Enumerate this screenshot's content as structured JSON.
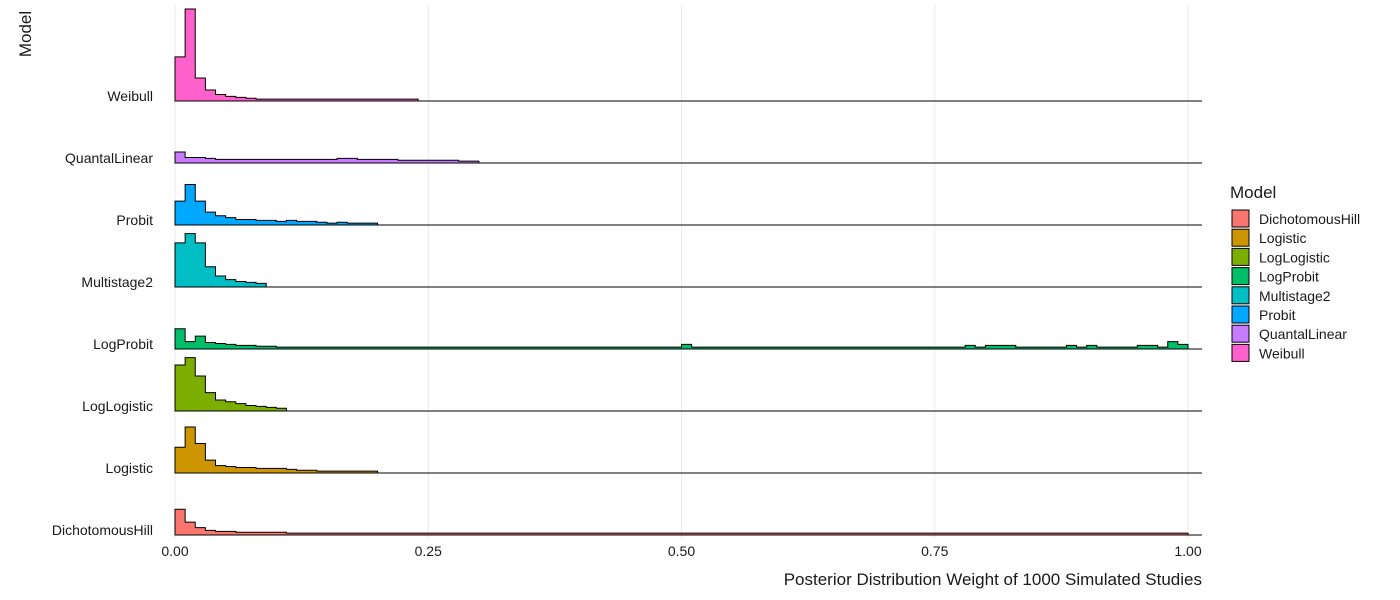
{
  "chart_data": {
    "type": "ridgeline histogram",
    "xlabel": "Posterior Distribution Weight of 1000 Simulated Studies",
    "ylabel": "Model",
    "xlim": [
      0,
      1
    ],
    "x_ticks": [
      "0.00",
      "0.25",
      "0.50",
      "0.75",
      "1.00"
    ],
    "bin_width": 0.01,
    "grid": "vertical major gridlines",
    "legend": {
      "title": "Model",
      "position": "right",
      "entries": [
        {
          "label": "DichotomousHill",
          "color": "#F8766D"
        },
        {
          "label": "Logistic",
          "color": "#CD9600"
        },
        {
          "label": "LogLogistic",
          "color": "#7CAE00"
        },
        {
          "label": "LogProbit",
          "color": "#00BE67"
        },
        {
          "label": "Multistage2",
          "color": "#00BFC4"
        },
        {
          "label": "Probit",
          "color": "#00A9FF"
        },
        {
          "label": "QuantalLinear",
          "color": "#C77CFF"
        },
        {
          "label": "Weibull",
          "color": "#FF61CC"
        }
      ]
    },
    "series": [
      {
        "name": "DichotomousHill",
        "color": "#F8766D",
        "values": [
          0.28,
          0.14,
          0.08,
          0.05,
          0.04,
          0.04,
          0.03,
          0.03,
          0.03,
          0.03,
          0.03,
          0.02,
          0.02,
          0.02,
          0.02,
          0.02,
          0.02,
          0.02,
          0.02,
          0.02,
          0.02,
          0.02,
          0.02,
          0.02,
          0.02,
          0.02,
          0.02,
          0.02,
          0.02,
          0.02,
          0.02,
          0.02,
          0.02,
          0.02,
          0.02,
          0.02,
          0.02,
          0.02,
          0.02,
          0.02,
          0.02,
          0.02,
          0.02,
          0.02,
          0.02,
          0.02,
          0.02,
          0.02,
          0.02,
          0.02,
          0.02,
          0.02,
          0.02,
          0.02,
          0.02,
          0.02,
          0.02,
          0.02,
          0.02,
          0.02,
          0.02,
          0.02,
          0.02,
          0.02,
          0.02,
          0.02,
          0.02,
          0.02,
          0.02,
          0.02,
          0.02,
          0.02,
          0.02,
          0.02,
          0.02,
          0.02,
          0.02,
          0.02,
          0.02,
          0.02,
          0.02,
          0.02,
          0.02,
          0.02,
          0.02,
          0.02,
          0.02,
          0.02,
          0.02,
          0.02,
          0.02,
          0.02,
          0.02,
          0.02,
          0.02,
          0.02,
          0.02,
          0.02,
          0.02,
          0.02
        ]
      },
      {
        "name": "Logistic",
        "color": "#CD9600",
        "values": [
          0.28,
          0.5,
          0.32,
          0.14,
          0.08,
          0.07,
          0.06,
          0.06,
          0.05,
          0.05,
          0.05,
          0.04,
          0.03,
          0.03,
          0.02,
          0.02,
          0.02,
          0.02,
          0.02,
          0.02,
          0,
          0,
          0,
          0,
          0,
          0,
          0,
          0,
          0,
          0,
          0,
          0,
          0,
          0,
          0,
          0,
          0,
          0,
          0,
          0,
          0,
          0,
          0,
          0,
          0,
          0,
          0,
          0,
          0,
          0,
          0,
          0,
          0,
          0,
          0,
          0,
          0,
          0,
          0,
          0,
          0,
          0,
          0,
          0,
          0,
          0,
          0,
          0,
          0,
          0,
          0,
          0,
          0,
          0,
          0,
          0,
          0,
          0,
          0,
          0,
          0,
          0,
          0,
          0,
          0,
          0,
          0,
          0,
          0,
          0,
          0,
          0,
          0,
          0,
          0,
          0,
          0,
          0,
          0,
          0
        ]
      },
      {
        "name": "LogLogistic",
        "color": "#7CAE00",
        "values": [
          0.5,
          0.58,
          0.38,
          0.2,
          0.12,
          0.1,
          0.08,
          0.06,
          0.05,
          0.04,
          0.03,
          0,
          0,
          0,
          0,
          0,
          0,
          0,
          0,
          0,
          0,
          0,
          0,
          0,
          0,
          0,
          0,
          0,
          0,
          0,
          0,
          0,
          0,
          0,
          0,
          0,
          0,
          0,
          0,
          0,
          0,
          0,
          0,
          0,
          0,
          0,
          0,
          0,
          0,
          0,
          0,
          0,
          0,
          0,
          0,
          0,
          0,
          0,
          0,
          0,
          0,
          0,
          0,
          0,
          0,
          0,
          0,
          0,
          0,
          0,
          0,
          0,
          0,
          0,
          0,
          0,
          0,
          0,
          0,
          0,
          0,
          0,
          0,
          0,
          0,
          0,
          0,
          0,
          0,
          0,
          0,
          0,
          0,
          0,
          0,
          0,
          0,
          0,
          0,
          0
        ]
      },
      {
        "name": "LogProbit",
        "color": "#00BE67",
        "values": [
          0.22,
          0.08,
          0.14,
          0.07,
          0.06,
          0.05,
          0.04,
          0.04,
          0.03,
          0.03,
          0.02,
          0.02,
          0.02,
          0.02,
          0.02,
          0.02,
          0.02,
          0.02,
          0.02,
          0.02,
          0.02,
          0.02,
          0.02,
          0.02,
          0.02,
          0.02,
          0.02,
          0.02,
          0.02,
          0.02,
          0.02,
          0.02,
          0.02,
          0.02,
          0.02,
          0.02,
          0.02,
          0.02,
          0.02,
          0.02,
          0.02,
          0.02,
          0.02,
          0.02,
          0.02,
          0.02,
          0.02,
          0.02,
          0.02,
          0.02,
          0.05,
          0.02,
          0.02,
          0.02,
          0.02,
          0.02,
          0.02,
          0.02,
          0.02,
          0.02,
          0.02,
          0.02,
          0.02,
          0.02,
          0.02,
          0.02,
          0.02,
          0.02,
          0.02,
          0.02,
          0.02,
          0.02,
          0.02,
          0.02,
          0.02,
          0.02,
          0.02,
          0.02,
          0.04,
          0.02,
          0.04,
          0.04,
          0.04,
          0.02,
          0.02,
          0.02,
          0.02,
          0.02,
          0.04,
          0.02,
          0.04,
          0.02,
          0.02,
          0.02,
          0.02,
          0.04,
          0.04,
          0.02,
          0.08,
          0.05
        ]
      },
      {
        "name": "Multistage2",
        "color": "#00BFC4",
        "values": [
          0.48,
          0.58,
          0.48,
          0.22,
          0.12,
          0.08,
          0.06,
          0.05,
          0.04,
          0,
          0,
          0,
          0,
          0,
          0,
          0,
          0,
          0,
          0,
          0,
          0,
          0,
          0,
          0,
          0,
          0,
          0,
          0,
          0,
          0,
          0,
          0,
          0,
          0,
          0,
          0,
          0,
          0,
          0,
          0,
          0,
          0,
          0,
          0,
          0,
          0,
          0,
          0,
          0,
          0,
          0,
          0,
          0,
          0,
          0,
          0,
          0,
          0,
          0,
          0,
          0,
          0,
          0,
          0,
          0,
          0,
          0,
          0,
          0,
          0,
          0,
          0,
          0,
          0,
          0,
          0,
          0,
          0,
          0,
          0,
          0,
          0,
          0,
          0,
          0,
          0,
          0,
          0,
          0,
          0,
          0,
          0,
          0,
          0,
          0,
          0,
          0,
          0,
          0,
          0
        ]
      },
      {
        "name": "Probit",
        "color": "#00A9FF",
        "values": [
          0.26,
          0.44,
          0.26,
          0.14,
          0.1,
          0.08,
          0.06,
          0.06,
          0.05,
          0.05,
          0.04,
          0.05,
          0.04,
          0.04,
          0.03,
          0.02,
          0.03,
          0.02,
          0.02,
          0.02,
          0,
          0,
          0,
          0,
          0,
          0,
          0,
          0,
          0,
          0,
          0,
          0,
          0,
          0,
          0,
          0,
          0,
          0,
          0,
          0,
          0,
          0,
          0,
          0,
          0,
          0,
          0,
          0,
          0,
          0,
          0,
          0,
          0,
          0,
          0,
          0,
          0,
          0,
          0,
          0,
          0,
          0,
          0,
          0,
          0,
          0,
          0,
          0,
          0,
          0,
          0,
          0,
          0,
          0,
          0,
          0,
          0,
          0,
          0,
          0,
          0,
          0,
          0,
          0,
          0,
          0,
          0,
          0,
          0,
          0,
          0,
          0,
          0,
          0,
          0,
          0,
          0,
          0,
          0,
          0
        ]
      },
      {
        "name": "QuantalLinear",
        "color": "#C77CFF",
        "values": [
          0.12,
          0.06,
          0.06,
          0.05,
          0.04,
          0.04,
          0.04,
          0.04,
          0.04,
          0.04,
          0.04,
          0.04,
          0.04,
          0.04,
          0.04,
          0.04,
          0.05,
          0.05,
          0.04,
          0.04,
          0.04,
          0.04,
          0.03,
          0.03,
          0.03,
          0.03,
          0.03,
          0.03,
          0.02,
          0.02,
          0,
          0,
          0,
          0,
          0,
          0,
          0,
          0,
          0,
          0,
          0,
          0,
          0,
          0,
          0,
          0,
          0,
          0,
          0,
          0,
          0,
          0,
          0,
          0,
          0,
          0,
          0,
          0,
          0,
          0,
          0,
          0,
          0,
          0,
          0,
          0,
          0,
          0,
          0,
          0,
          0,
          0,
          0,
          0,
          0,
          0,
          0,
          0,
          0,
          0,
          0,
          0,
          0,
          0,
          0,
          0,
          0,
          0,
          0,
          0,
          0,
          0,
          0,
          0,
          0,
          0,
          0,
          0,
          0,
          0
        ]
      },
      {
        "name": "Weibull",
        "color": "#FF61CC",
        "values": [
          0.48,
          1.0,
          0.25,
          0.12,
          0.07,
          0.05,
          0.04,
          0.03,
          0.02,
          0.02,
          0.02,
          0.02,
          0.02,
          0.02,
          0.02,
          0.02,
          0.02,
          0.02,
          0.02,
          0.02,
          0.02,
          0.02,
          0.02,
          0.02,
          0,
          0,
          0,
          0,
          0,
          0,
          0,
          0,
          0,
          0,
          0,
          0,
          0,
          0,
          0,
          0,
          0,
          0,
          0,
          0,
          0,
          0,
          0,
          0,
          0,
          0,
          0,
          0,
          0,
          0,
          0,
          0,
          0,
          0,
          0,
          0,
          0,
          0,
          0,
          0,
          0,
          0,
          0,
          0,
          0,
          0,
          0,
          0,
          0,
          0,
          0,
          0,
          0,
          0,
          0,
          0,
          0,
          0,
          0,
          0,
          0,
          0,
          0,
          0,
          0,
          0,
          0,
          0,
          0,
          0,
          0,
          0,
          0,
          0,
          0,
          0
        ]
      }
    ]
  }
}
